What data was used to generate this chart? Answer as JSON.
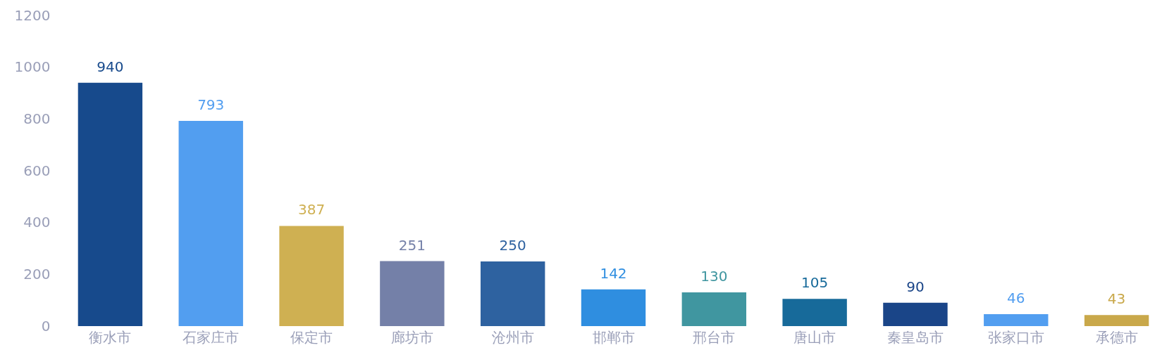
{
  "chart_data": {
    "type": "bar",
    "categories": [
      "衡水市",
      "石家庄市",
      "保定市",
      "廊坊市",
      "沧州市",
      "邯郸市",
      "邢台市",
      "唐山市",
      "秦皇岛市",
      "张家口市",
      "承德市"
    ],
    "values": [
      940,
      793,
      387,
      251,
      250,
      142,
      130,
      105,
      90,
      46,
      43
    ],
    "colors": [
      "#174a8c",
      "#529ef0",
      "#cfb052",
      "#7480a8",
      "#2e62a0",
      "#2f8ee0",
      "#4096a0",
      "#176a9a",
      "#1a4588",
      "#529ef0",
      "#c9a84a"
    ],
    "ylim": [
      0,
      1200
    ],
    "yticks": [
      0,
      200,
      400,
      600,
      800,
      1000,
      1200
    ],
    "data_labels": true,
    "grid": false
  }
}
